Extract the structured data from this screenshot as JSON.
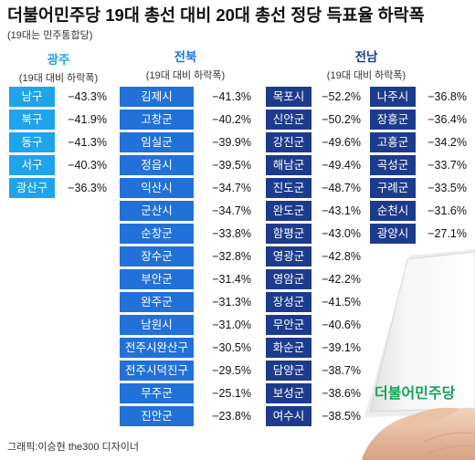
{
  "chart_data": {
    "type": "table",
    "title": "더불어민주당 19대 총선 대비 20대 총선 정당 득표율 하락폭",
    "subtitle": "(19대는 민주통합당)",
    "unit": "%",
    "groups": [
      {
        "name": "광주",
        "caption": "(19대 대비 하락폭)",
        "color": "#1fa3ea",
        "rows": [
          {
            "district": "남구",
            "value": -43.3
          },
          {
            "district": "북구",
            "value": -41.9
          },
          {
            "district": "동구",
            "value": -41.3
          },
          {
            "district": "서구",
            "value": -40.3
          },
          {
            "district": "광산구",
            "value": -36.3
          }
        ]
      },
      {
        "name": "전북",
        "caption": "(19대 대비 하락폭)",
        "color": "#2171d9",
        "rows": [
          {
            "district": "김제시",
            "value": -41.3
          },
          {
            "district": "고창군",
            "value": -40.2
          },
          {
            "district": "임실군",
            "value": -39.9
          },
          {
            "district": "정읍시",
            "value": -39.5
          },
          {
            "district": "익산시",
            "value": -34.7
          },
          {
            "district": "군산시",
            "value": -34.7
          },
          {
            "district": "순창군",
            "value": -33.8
          },
          {
            "district": "장수군",
            "value": -32.8
          },
          {
            "district": "부안군",
            "value": -31.4
          },
          {
            "district": "완주군",
            "value": -31.3
          },
          {
            "district": "남원시",
            "value": -31.0
          },
          {
            "district": "전주시완산구",
            "value": -30.5
          },
          {
            "district": "전주시덕진구",
            "value": -29.5
          },
          {
            "district": "무주군",
            "value": -25.1
          },
          {
            "district": "진안군",
            "value": -23.8
          }
        ]
      },
      {
        "name": "전남",
        "caption": "(19대 대비 하락폭)",
        "color": "#1d3b8d",
        "rows": [
          {
            "district": "목포시",
            "value": -52.2
          },
          {
            "district": "신안군",
            "value": -50.2
          },
          {
            "district": "강진군",
            "value": -49.6
          },
          {
            "district": "해남군",
            "value": -49.4
          },
          {
            "district": "진도군",
            "value": -48.7
          },
          {
            "district": "완도군",
            "value": -43.1
          },
          {
            "district": "함평군",
            "value": -43.0
          },
          {
            "district": "영광군",
            "value": -42.8
          },
          {
            "district": "영암군",
            "value": -42.2
          },
          {
            "district": "장성군",
            "value": -41.5
          },
          {
            "district": "무안군",
            "value": -40.6
          },
          {
            "district": "화순군",
            "value": -39.1
          },
          {
            "district": "담양군",
            "value": -38.7
          },
          {
            "district": "보성군",
            "value": -38.6
          },
          {
            "district": "여수시",
            "value": -38.5
          },
          {
            "district": "나주시",
            "value": -36.8
          },
          {
            "district": "장흥군",
            "value": -36.4
          },
          {
            "district": "고흥군",
            "value": -34.2
          },
          {
            "district": "곡성군",
            "value": -33.7
          },
          {
            "district": "구례군",
            "value": -33.5
          },
          {
            "district": "순천시",
            "value": -31.6
          },
          {
            "district": "광양시",
            "value": -27.1
          }
        ]
      }
    ]
  },
  "credit": "그래픽:이승현 the300 디자이너",
  "logo": {
    "text": "더불어민주당",
    "color": "#16a35c"
  }
}
